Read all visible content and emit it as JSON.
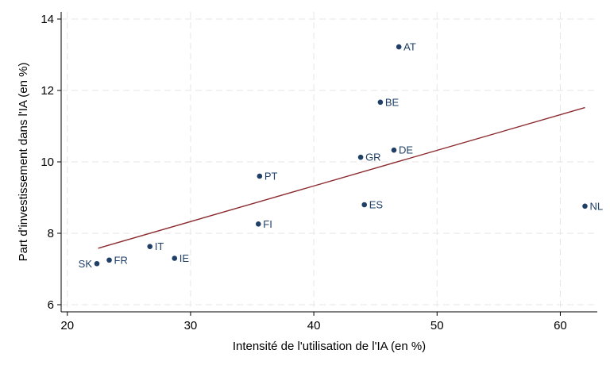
{
  "chart_data": {
    "type": "scatter",
    "title": "",
    "xlabel": "Intensité de l'utilisation de l'IA (en %)",
    "ylabel": "Part d'investissement dans l'IA (en %)",
    "xlim": [
      19.5,
      63
    ],
    "ylim": [
      5.8,
      14.2
    ],
    "xticks": [
      20,
      30,
      40,
      50,
      60
    ],
    "yticks": [
      6,
      8,
      10,
      12,
      14
    ],
    "grid": true,
    "point_color": "#1f3f66",
    "fit_color": "#8b2a2e",
    "points": [
      {
        "label": "AT",
        "x": 46.9,
        "y": 13.22
      },
      {
        "label": "BE",
        "x": 45.4,
        "y": 11.67
      },
      {
        "label": "DE",
        "x": 46.5,
        "y": 10.33
      },
      {
        "label": "GR",
        "x": 43.8,
        "y": 10.13
      },
      {
        "label": "PT",
        "x": 35.6,
        "y": 9.6
      },
      {
        "label": "ES",
        "x": 44.1,
        "y": 8.8
      },
      {
        "label": "NL",
        "x": 62.0,
        "y": 8.76
      },
      {
        "label": "FI",
        "x": 35.5,
        "y": 8.26
      },
      {
        "label": "IT",
        "x": 26.7,
        "y": 7.63
      },
      {
        "label": "IE",
        "x": 28.7,
        "y": 7.3
      },
      {
        "label": "FR",
        "x": 23.4,
        "y": 7.25
      },
      {
        "label": "SK",
        "x": 22.4,
        "y": 7.15
      }
    ],
    "fit_line": {
      "x": [
        22.5,
        62.0
      ],
      "y": [
        7.58,
        11.52
      ]
    }
  }
}
